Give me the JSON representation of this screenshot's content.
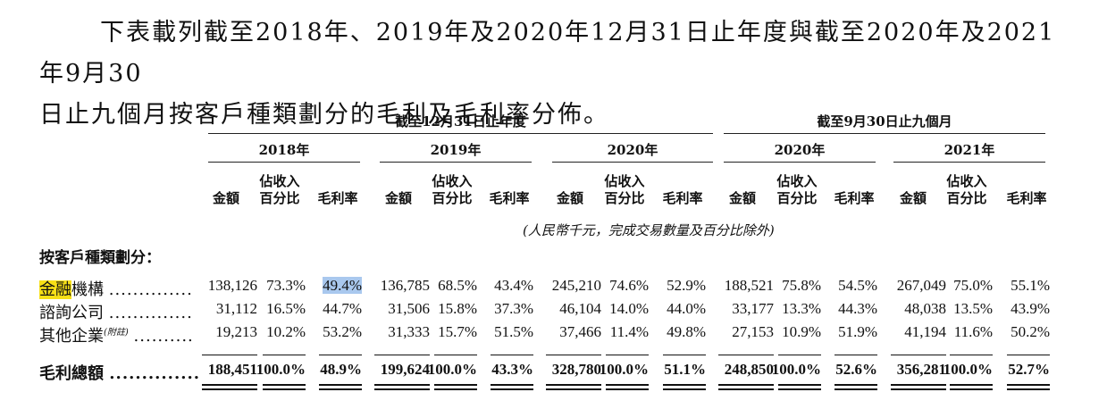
{
  "intro": {
    "line1": "下表載列截至2018年、2019年及2020年12月31日止年度與截至2020年及2021年9月30",
    "line2": "日止九個月按客戶種類劃分的毛利及毛利率分佈。"
  },
  "table": {
    "group_headers": [
      "截至12月31日止年度",
      "截至9月30日止九個月"
    ],
    "period_headers": [
      "2018年",
      "2019年",
      "2020年",
      "2020年",
      "2021年"
    ],
    "sub_headers": {
      "amount": "金額",
      "pct_line1": "佔收入",
      "pct_line2": "百分比",
      "margin": "毛利率"
    },
    "unit_note": "(人民幣千元，完成交易數量及百分比除外)",
    "section_label": "按客戶種類劃分：",
    "rows": [
      {
        "label_hl": "金融",
        "label": "機構",
        "dots": "..............",
        "values": [
          "138,126",
          "73.3%",
          "49.4%",
          "136,785",
          "68.5%",
          "43.4%",
          "245,210",
          "74.6%",
          "52.9%",
          "188,521",
          "75.8%",
          "54.5%",
          "267,049",
          "75.0%",
          "55.1%"
        ]
      },
      {
        "label_hl": "",
        "label": "諮詢公司",
        "dots": "..............",
        "values": [
          "31,112",
          "16.5%",
          "44.7%",
          "31,506",
          "15.8%",
          "37.3%",
          "46,104",
          "14.0%",
          "44.0%",
          "33,177",
          "13.3%",
          "44.3%",
          "48,038",
          "13.5%",
          "43.9%"
        ]
      },
      {
        "label_hl": "",
        "label": "其他企業",
        "note": "(附註)",
        "dots": "..........",
        "values": [
          "19,213",
          "10.2%",
          "53.2%",
          "31,333",
          "15.7%",
          "51.5%",
          "37,466",
          "11.4%",
          "49.8%",
          "27,153",
          "10.9%",
          "51.9%",
          "41,194",
          "11.6%",
          "50.2%"
        ]
      }
    ],
    "total": {
      "label": "毛利總額",
      "dots": "..............",
      "values": [
        "188,451",
        "100.0%",
        "48.9%",
        "199,624",
        "100.0%",
        "43.3%",
        "328,780",
        "100.0%",
        "51.1%",
        "248,850",
        "100.0%",
        "52.6%",
        "356,281",
        "100.0%",
        "52.7%"
      ]
    }
  }
}
